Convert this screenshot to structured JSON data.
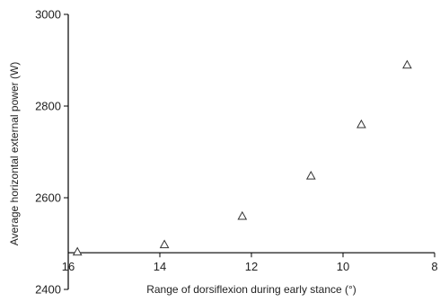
{
  "chart_data": {
    "type": "scatter",
    "title": "",
    "xlabel": "Range of dorsiflexion during early stance (°)",
    "ylabel": "Average horizontal external power (W)",
    "xlim": [
      16,
      8
    ],
    "ylim": [
      2400,
      3000
    ],
    "x_reversed": true,
    "x_axis_crosses_y_at": 2480,
    "xticks": [
      "16",
      "14",
      "12",
      "10",
      "8"
    ],
    "yticks": [
      "2400",
      "2600",
      "2800",
      "3000"
    ],
    "marker": "open-triangle",
    "grid": false,
    "legend": "none",
    "points": [
      {
        "x": 15.8,
        "y": 2482
      },
      {
        "x": 13.9,
        "y": 2498
      },
      {
        "x": 12.2,
        "y": 2560
      },
      {
        "x": 10.7,
        "y": 2648
      },
      {
        "x": 9.6,
        "y": 2760
      },
      {
        "x": 8.6,
        "y": 2890
      }
    ]
  }
}
